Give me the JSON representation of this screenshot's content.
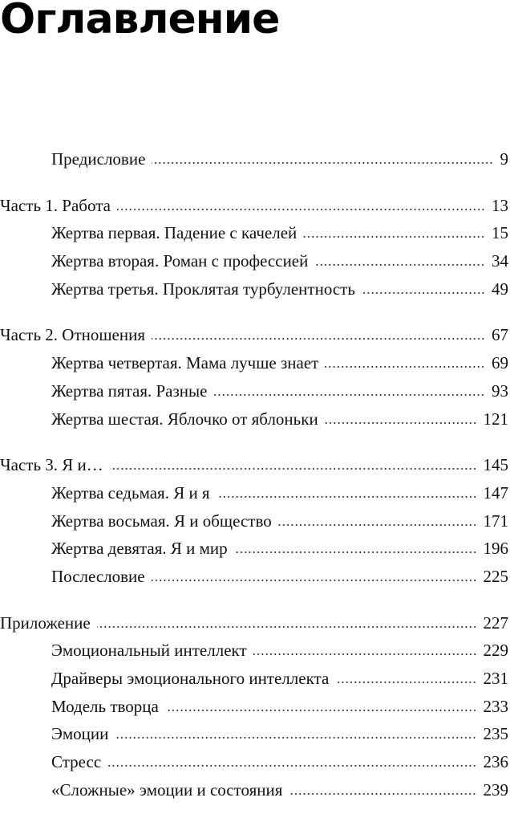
{
  "title": "Оглавление",
  "groups": [
    {
      "entries": [
        {
          "label": "Предисловие",
          "page": "9",
          "level": 2
        }
      ]
    },
    {
      "entries": [
        {
          "label": "Часть 1. Работа",
          "page": "13",
          "level": 1
        },
        {
          "label": "Жертва первая. Падение с качелей",
          "page": "15",
          "level": 2
        },
        {
          "label": "Жертва вторая. Роман с профессией",
          "page": "34",
          "level": 2
        },
        {
          "label": "Жертва третья. Проклятая турбулентность",
          "page": "49",
          "level": 2
        }
      ]
    },
    {
      "entries": [
        {
          "label": "Часть 2. Отношения",
          "page": "67",
          "level": 1
        },
        {
          "label": "Жертва четвертая. Мама лучше знает",
          "page": "69",
          "level": 2
        },
        {
          "label": "Жертва пятая. Разные",
          "page": "93",
          "level": 2
        },
        {
          "label": "Жертва шестая. Яблочко от яблоньки",
          "page": "121",
          "level": 2
        }
      ]
    },
    {
      "entries": [
        {
          "label": "Часть 3. Я и…",
          "page": "145",
          "level": 1
        },
        {
          "label": "Жертва седьмая. Я и я",
          "page": "147",
          "level": 2
        },
        {
          "label": "Жертва восьмая. Я и общество",
          "page": "171",
          "level": 2
        },
        {
          "label": "Жертва девятая. Я и мир",
          "page": "196",
          "level": 2
        },
        {
          "label": "Послесловие",
          "page": "225",
          "level": 2
        }
      ]
    },
    {
      "entries": [
        {
          "label": "Приложение",
          "page": "227",
          "level": 1
        },
        {
          "label": "Эмоциональный интеллект",
          "page": "229",
          "level": 2
        },
        {
          "label": "Драйверы эмоционального интеллекта",
          "page": "231",
          "level": 2
        },
        {
          "label": "Модель творца",
          "page": "233",
          "level": 2
        },
        {
          "label": "Эмоции",
          "page": "235",
          "level": 2
        },
        {
          "label": "Стресс",
          "page": "236",
          "level": 2
        },
        {
          "label": "«Сложные» эмоции и состояния",
          "page": "239",
          "level": 2
        }
      ]
    }
  ]
}
